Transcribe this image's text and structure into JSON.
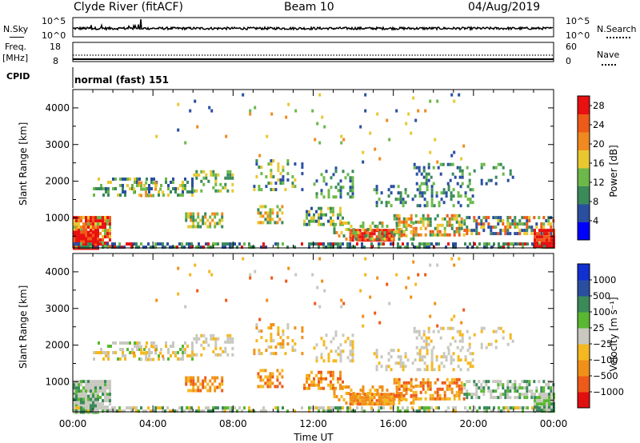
{
  "header": {
    "station": "Clyde River (fitACF)",
    "beam": "Beam 10",
    "date": "04/Aug/2019"
  },
  "top_panels": {
    "noise": {
      "left_label": "N.Sky",
      "right_label": "N.Search",
      "left_ticks": [
        "10^5",
        "10^0"
      ],
      "right_ticks": [
        "10^5",
        "10^0"
      ]
    },
    "freq": {
      "left_label": "Freq.",
      "left_unit": "[MHz]",
      "right_label": "Nave",
      "left_ticks": [
        "18",
        "8"
      ],
      "right_ticks": [
        "60",
        "0"
      ]
    },
    "cpid": {
      "label": "CPID",
      "value": "normal (fast) 151"
    }
  },
  "colors": {
    "power_scale": [
      "#0000ff",
      "#2a4fa0",
      "#3a8a5a",
      "#6cb84a",
      "#e8c830",
      "#f08a20",
      "#ee5a18",
      "#e81010"
    ],
    "velocity_scale": [
      "#e01010",
      "#ee5a18",
      "#f09018",
      "#f4b820",
      "#c8c8c0",
      "#5ab830",
      "#3a8a5a",
      "#2a4fa0",
      "#1030d0"
    ]
  },
  "chart_data": [
    {
      "type": "heatmap",
      "title": "",
      "xlabel": "Time UT",
      "ylabel": "Slant Range [km]",
      "x_ticks": [
        "00:00",
        "04:00",
        "08:00",
        "12:00",
        "16:00",
        "20:00",
        "00:00"
      ],
      "y_ticks": [
        "1000",
        "2000",
        "3000",
        "4000"
      ],
      "xlim_hours": [
        0,
        24
      ],
      "ylim_km": [
        180,
        4500
      ],
      "colorbar": {
        "label": "Power [dB]",
        "ticks": [
          "4",
          "8",
          "12",
          "16",
          "20",
          "24",
          "28"
        ],
        "range": [
          0,
          30
        ]
      }
    },
    {
      "type": "heatmap",
      "title": "",
      "xlabel": "Time UT",
      "ylabel": "Slant Range [km]",
      "x_ticks": [
        "00:00",
        "04:00",
        "08:00",
        "12:00",
        "16:00",
        "20:00",
        "00:00"
      ],
      "y_ticks": [
        "1000",
        "2000",
        "3000",
        "4000"
      ],
      "xlim_hours": [
        0,
        24
      ],
      "ylim_km": [
        180,
        4500
      ],
      "colorbar": {
        "label": "Velocity [m s⁻¹]",
        "ticks": [
          "1000",
          "500",
          "100",
          "25",
          "−25",
          "−100",
          "−500",
          "−1000"
        ]
      }
    }
  ]
}
